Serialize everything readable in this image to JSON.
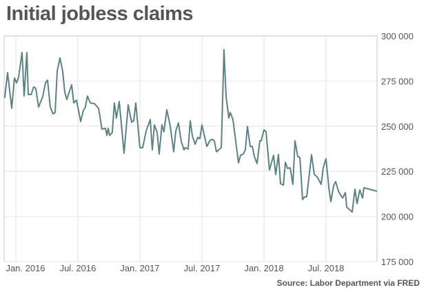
{
  "chart_data": {
    "type": "line",
    "title": "Initial jobless claims",
    "source": "Source: Labor Department via FRED",
    "xlabel": "",
    "ylabel": "",
    "x_unit": "months since Jan. 2016",
    "xlim": [
      -1.13,
      34.93
    ],
    "ylim": [
      175000,
      300000
    ],
    "grid": true,
    "line_color": "#5b8282",
    "y_ticks": [
      {
        "value": 300000,
        "label": "300 000"
      },
      {
        "value": 275000,
        "label": "275 000"
      },
      {
        "value": 250000,
        "label": "250 000"
      },
      {
        "value": 225000,
        "label": "225 000"
      },
      {
        "value": 200000,
        "label": "200 000"
      },
      {
        "value": 175000,
        "label": "175 000"
      }
    ],
    "x_ticks": [
      {
        "value": 0,
        "label": "Jan. 2016"
      },
      {
        "value": 6,
        "label": "Jul. 2016"
      },
      {
        "value": 12,
        "label": "Jan. 2017"
      },
      {
        "value": 18,
        "label": "Jul. 2017"
      },
      {
        "value": 24,
        "label": "Jan. 2018"
      },
      {
        "value": 30,
        "label": "Jul. 2018"
      }
    ],
    "series": [
      {
        "name": "Initial jobless claims",
        "x": [
          -1.07,
          -0.8,
          -0.4,
          -0.13,
          0.07,
          0.27,
          0.6,
          0.8,
          1.07,
          1.2,
          1.47,
          1.73,
          1.93,
          2.2,
          2.6,
          2.87,
          3.07,
          3.33,
          3.6,
          3.8,
          4.0,
          4.27,
          4.53,
          4.73,
          4.93,
          5.4,
          5.6,
          5.87,
          6.27,
          6.53,
          6.73,
          6.93,
          7.2,
          7.6,
          8.0,
          8.33,
          8.67,
          8.8,
          8.93,
          9.07,
          9.33,
          9.53,
          9.73,
          10.0,
          10.47,
          10.87,
          11.2,
          11.4,
          11.6,
          12.0,
          12.27,
          12.6,
          13.0,
          13.2,
          13.4,
          13.67,
          13.87,
          14.13,
          14.33,
          14.6,
          14.93,
          15.27,
          15.47,
          15.73,
          16.0,
          16.27,
          16.4,
          16.67,
          16.87,
          17.07,
          17.33,
          17.6,
          17.8,
          18.0,
          18.47,
          18.8,
          19.0,
          19.2,
          19.4,
          19.87,
          20.13,
          20.33,
          20.6,
          20.73,
          21.0,
          21.53,
          21.73,
          22.0,
          22.2,
          22.4,
          22.67,
          22.87,
          23.07,
          23.33,
          23.6,
          23.73,
          24.0,
          24.2,
          24.53,
          24.93,
          25.13,
          25.4,
          25.6,
          25.87,
          26.07,
          26.27,
          26.53,
          26.8,
          27.0,
          27.27,
          27.47,
          27.73,
          27.93,
          28.13,
          28.6,
          28.87,
          29.13,
          29.53,
          29.73,
          30.0,
          30.27,
          30.47,
          30.73,
          30.93,
          31.2,
          31.6,
          31.87,
          32.0,
          32.53,
          32.8,
          33.0,
          33.27,
          33.53,
          33.67,
          34.93
        ],
        "values": [
          265600,
          279700,
          259900,
          276700,
          274000,
          277100,
          290800,
          266700,
          290800,
          267500,
          267500,
          271700,
          270900,
          260600,
          266400,
          274000,
          275500,
          260600,
          256800,
          257600,
          280500,
          287800,
          280500,
          269000,
          264800,
          272900,
          262900,
          264400,
          252600,
          258700,
          260600,
          266700,
          262900,
          262500,
          259900,
          248400,
          248800,
          244900,
          248800,
          244900,
          246500,
          262900,
          254500,
          263700,
          235000,
          261800,
          252200,
          253000,
          262900,
          238100,
          238100,
          247200,
          253700,
          236900,
          250700,
          246500,
          234600,
          250700,
          246900,
          259100,
          250300,
          235800,
          247200,
          251800,
          241500,
          236900,
          238100,
          237300,
          253000,
          244600,
          240000,
          243800,
          243000,
          250700,
          238800,
          242300,
          242700,
          241900,
          235800,
          238100,
          292400,
          266700,
          254500,
          257600,
          253700,
          229700,
          233900,
          234600,
          236900,
          249900,
          238800,
          238800,
          233100,
          229300,
          241900,
          241900,
          248000,
          246900,
          225800,
          233900,
          223200,
          234300,
          218200,
          217400,
          230000,
          226600,
          227000,
          217800,
          241900,
          233100,
          232700,
          209400,
          210900,
          210900,
          234200,
          223200,
          222000,
          217800,
          227000,
          232000,
          215900,
          208200,
          217000,
          219300,
          214000,
          210200,
          213200,
          205200,
          202500,
          215100,
          207100,
          214700,
          210200,
          215900,
          214000
        ]
      }
    ]
  }
}
